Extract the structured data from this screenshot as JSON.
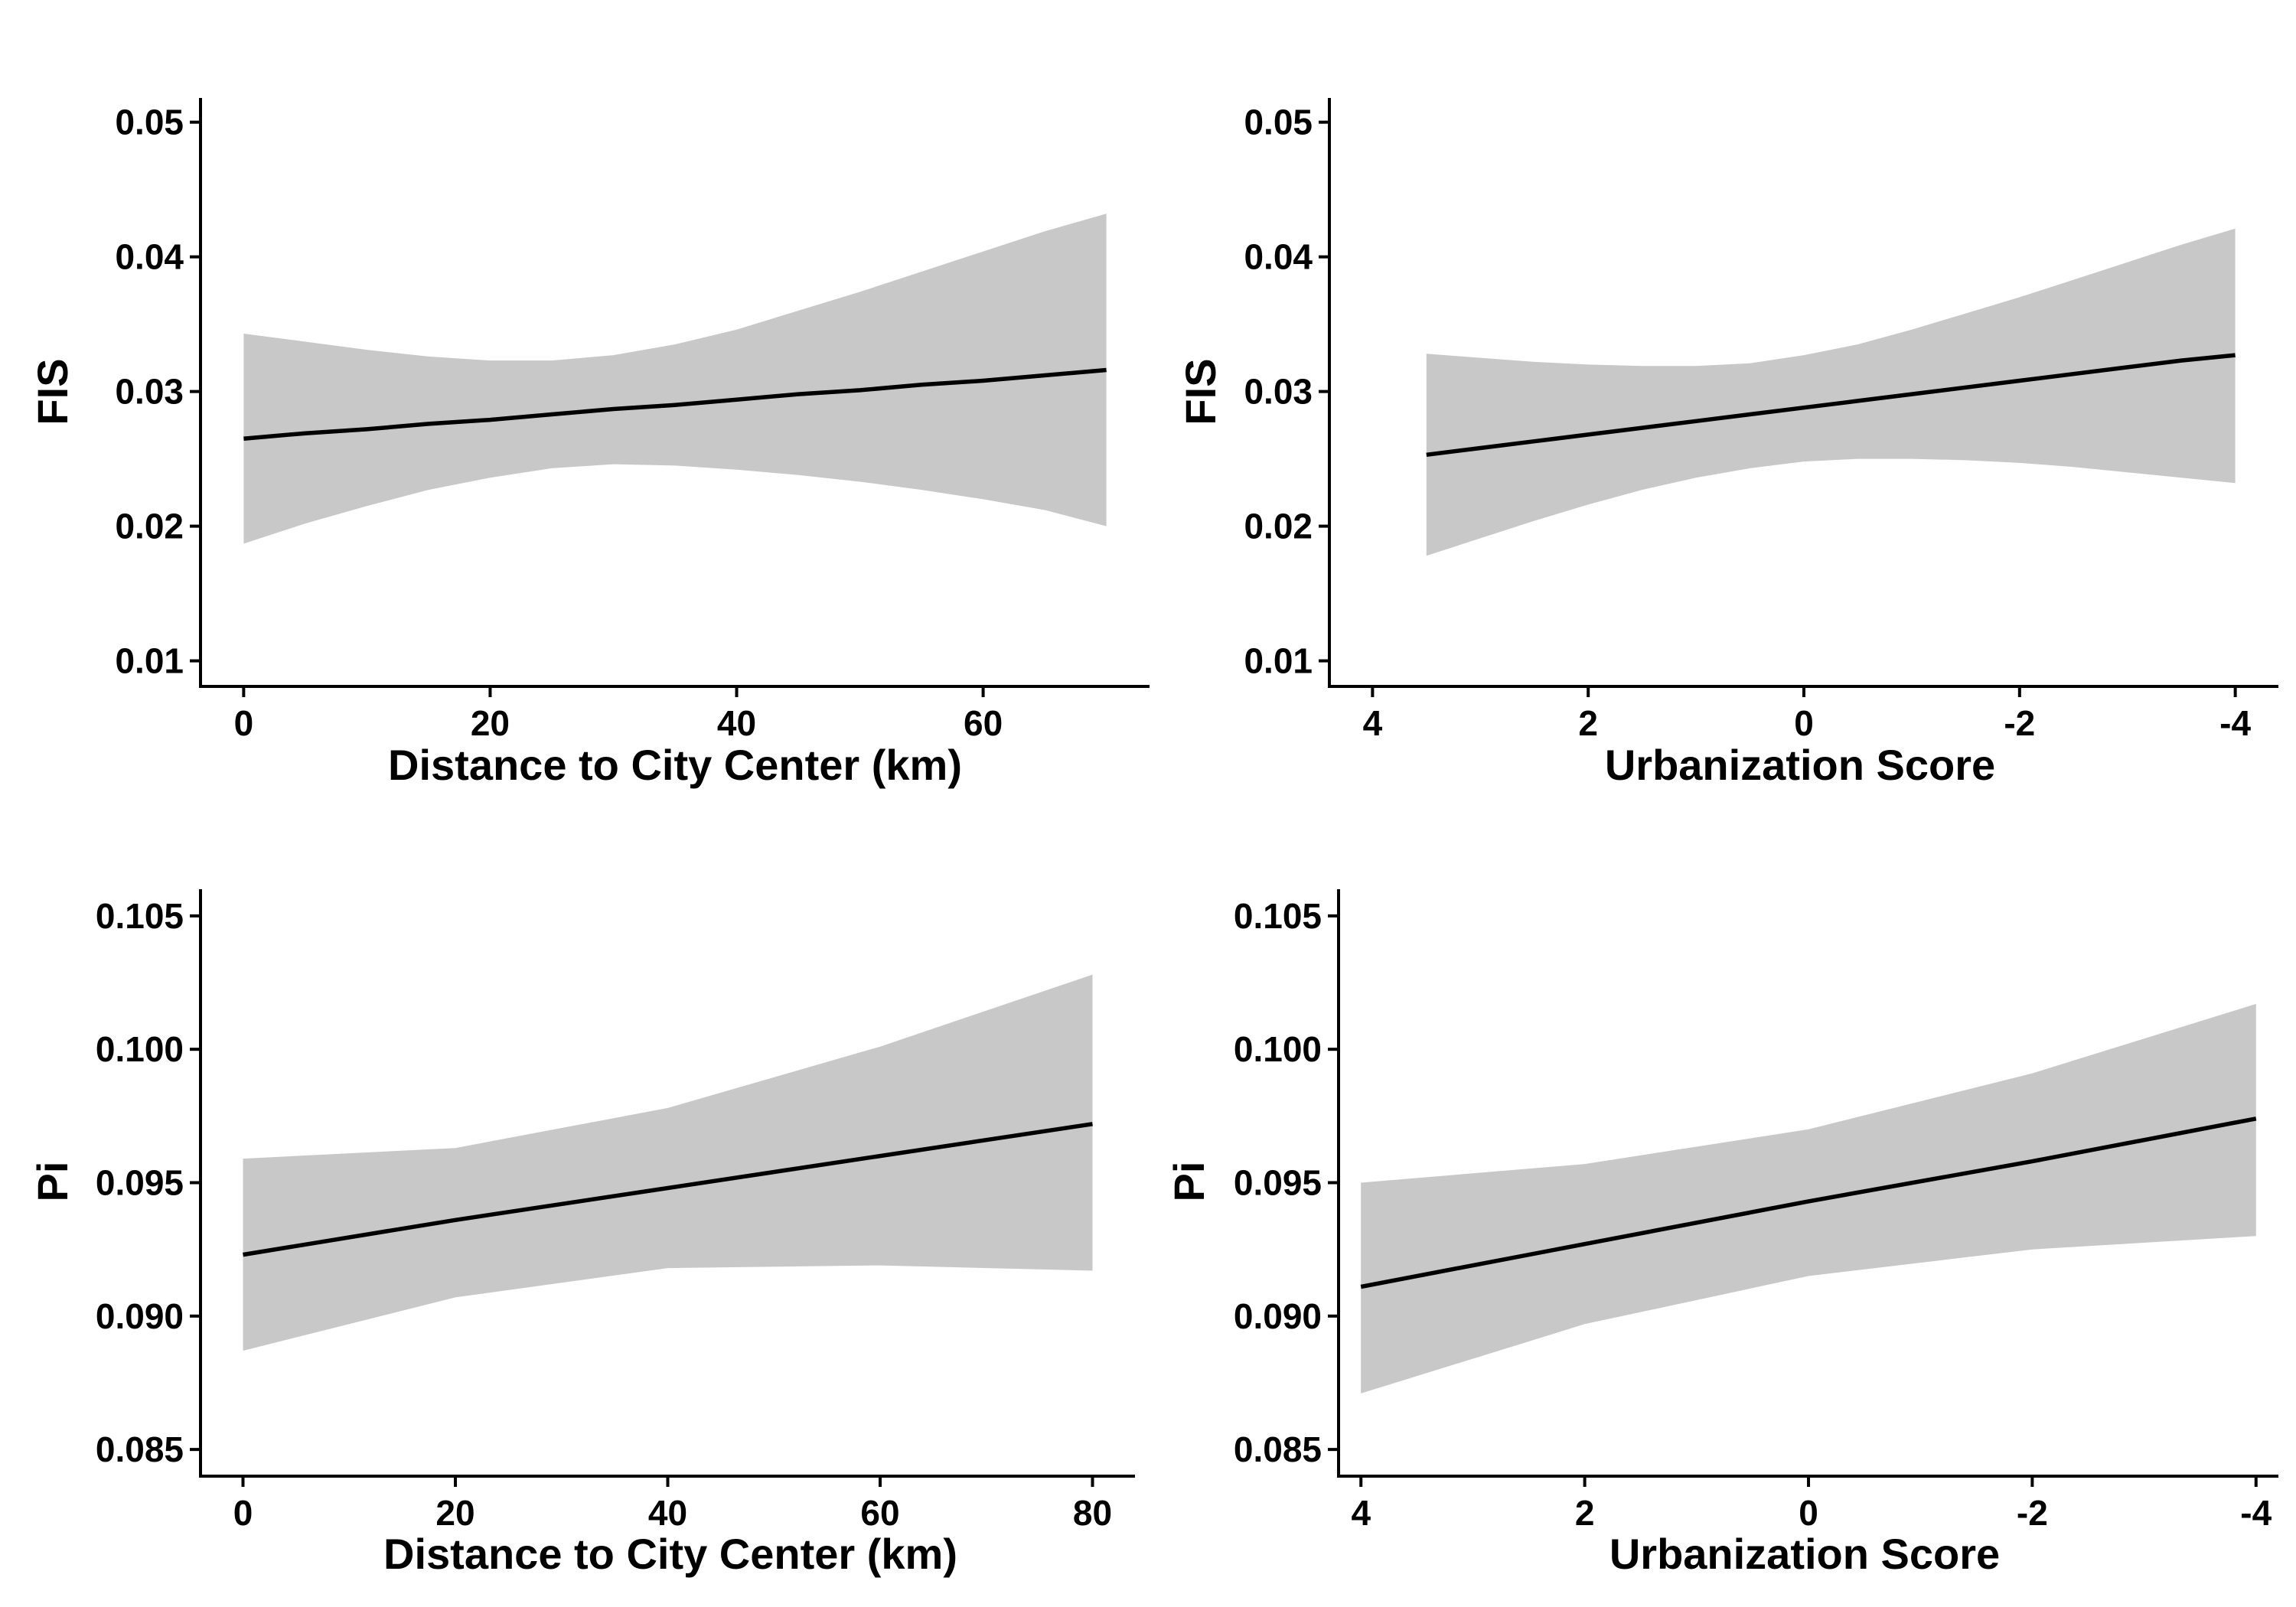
{
  "chart_data": [
    {
      "type": "line",
      "id": "fis-distance",
      "xlabel": "Distance to City Center (km)",
      "ylabel": "FIS",
      "xlim": [
        -3.5,
        73.5
      ],
      "ylim": [
        0.0081,
        0.0518
      ],
      "x_reversed": false,
      "x_ticks": [
        0,
        20,
        40,
        60
      ],
      "x_tick_labels": [
        "0",
        "20",
        "40",
        "60"
      ],
      "y_ticks": [
        0.01,
        0.02,
        0.03,
        0.04,
        0.05
      ],
      "y_tick_labels": [
        "0.01",
        "0.02",
        "0.03",
        "0.04",
        "0.05"
      ],
      "grid": false,
      "series": [
        {
          "x": [
            0,
            5,
            10,
            15,
            20,
            25,
            30,
            35,
            40,
            45,
            50,
            55,
            60,
            65,
            70
          ],
          "fit": [
            0.0265,
            0.0269,
            0.0272,
            0.0276,
            0.0279,
            0.0283,
            0.0287,
            0.029,
            0.0294,
            0.0298,
            0.0301,
            0.0305,
            0.0308,
            0.0312,
            0.0316
          ],
          "lower": [
            0.0187,
            0.0202,
            0.0215,
            0.0227,
            0.0236,
            0.0243,
            0.0246,
            0.0245,
            0.0242,
            0.0238,
            0.0233,
            0.0227,
            0.022,
            0.0212,
            0.02
          ],
          "upper": [
            0.0343,
            0.0337,
            0.0331,
            0.0326,
            0.0323,
            0.0323,
            0.0327,
            0.0335,
            0.0346,
            0.036,
            0.0374,
            0.0389,
            0.0404,
            0.0419,
            0.0432
          ]
        }
      ]
    },
    {
      "type": "line",
      "id": "fis-urbanization",
      "xlabel": "Urbanization Score",
      "ylabel": "FIS",
      "xlim": [
        4.4,
        -4.4
      ],
      "ylim": [
        0.0081,
        0.0518
      ],
      "x_reversed": true,
      "x_ticks": [
        4,
        2,
        0,
        -2,
        -4
      ],
      "x_tick_labels": [
        "4",
        "2",
        "0",
        "-2",
        "-4"
      ],
      "y_ticks": [
        0.01,
        0.02,
        0.03,
        0.04,
        0.05
      ],
      "y_tick_labels": [
        "0.01",
        "0.02",
        "0.03",
        "0.04",
        "0.05"
      ],
      "grid": false,
      "series": [
        {
          "x": [
            3.5,
            3.0,
            2.5,
            2.0,
            1.5,
            1.0,
            0.5,
            0.0,
            -0.5,
            -1.0,
            -1.5,
            -2.0,
            -2.5,
            -3.0,
            -3.5,
            -4.0
          ],
          "fit": [
            0.0253,
            0.0258,
            0.0263,
            0.0268,
            0.0273,
            0.0278,
            0.0283,
            0.0288,
            0.0293,
            0.0298,
            0.0303,
            0.0308,
            0.0313,
            0.0318,
            0.0323,
            0.0327
          ],
          "lower": [
            0.0178,
            0.0191,
            0.0204,
            0.0216,
            0.0227,
            0.0236,
            0.0243,
            0.0248,
            0.025,
            0.025,
            0.0249,
            0.0247,
            0.0244,
            0.024,
            0.0236,
            0.0232
          ],
          "upper": [
            0.0328,
            0.0325,
            0.0322,
            0.032,
            0.0319,
            0.0319,
            0.0321,
            0.0327,
            0.0335,
            0.0346,
            0.0358,
            0.037,
            0.0383,
            0.0396,
            0.0409,
            0.0421
          ]
        }
      ]
    },
    {
      "type": "line",
      "id": "pi-distance",
      "xlabel": "Distance to City Center (km)",
      "ylabel": "Pi",
      "xlim": [
        -4,
        84
      ],
      "ylim": [
        0.084,
        0.106
      ],
      "x_reversed": false,
      "x_ticks": [
        0,
        20,
        40,
        60,
        80
      ],
      "x_tick_labels": [
        "0",
        "20",
        "40",
        "60",
        "80"
      ],
      "y_ticks": [
        0.085,
        0.09,
        0.095,
        0.1,
        0.105
      ],
      "y_tick_labels": [
        "0.085",
        "0.090",
        "0.095",
        "0.100",
        "0.105"
      ],
      "grid": false,
      "series": [
        {
          "x": [
            0,
            20,
            40,
            60,
            80
          ],
          "fit": [
            0.0923,
            0.0936,
            0.0948,
            0.096,
            0.0972
          ],
          "lower": [
            0.0887,
            0.0907,
            0.0918,
            0.0919,
            0.0917
          ],
          "upper": [
            0.0959,
            0.0963,
            0.0978,
            0.1001,
            0.1028
          ]
        }
      ]
    },
    {
      "type": "line",
      "id": "pi-urbanization",
      "xlabel": "Urbanization Score",
      "ylabel": "Pi",
      "xlim": [
        4.2,
        -4.2
      ],
      "ylim": [
        0.084,
        0.106
      ],
      "x_reversed": true,
      "x_ticks": [
        4,
        2,
        0,
        -2,
        -4
      ],
      "x_tick_labels": [
        "4",
        "2",
        "0",
        "-2",
        "-4"
      ],
      "y_ticks": [
        0.085,
        0.09,
        0.095,
        0.1,
        0.105
      ],
      "y_tick_labels": [
        "0.085",
        "0.090",
        "0.095",
        "0.100",
        "0.105"
      ],
      "grid": false,
      "series": [
        {
          "x": [
            4,
            2,
            0,
            -2,
            -4
          ],
          "fit": [
            0.0911,
            0.0927,
            0.0943,
            0.0958,
            0.0974
          ],
          "lower": [
            0.0871,
            0.0897,
            0.0915,
            0.0925,
            0.093
          ],
          "upper": [
            0.095,
            0.0957,
            0.097,
            0.0991,
            0.1017
          ]
        }
      ]
    }
  ]
}
